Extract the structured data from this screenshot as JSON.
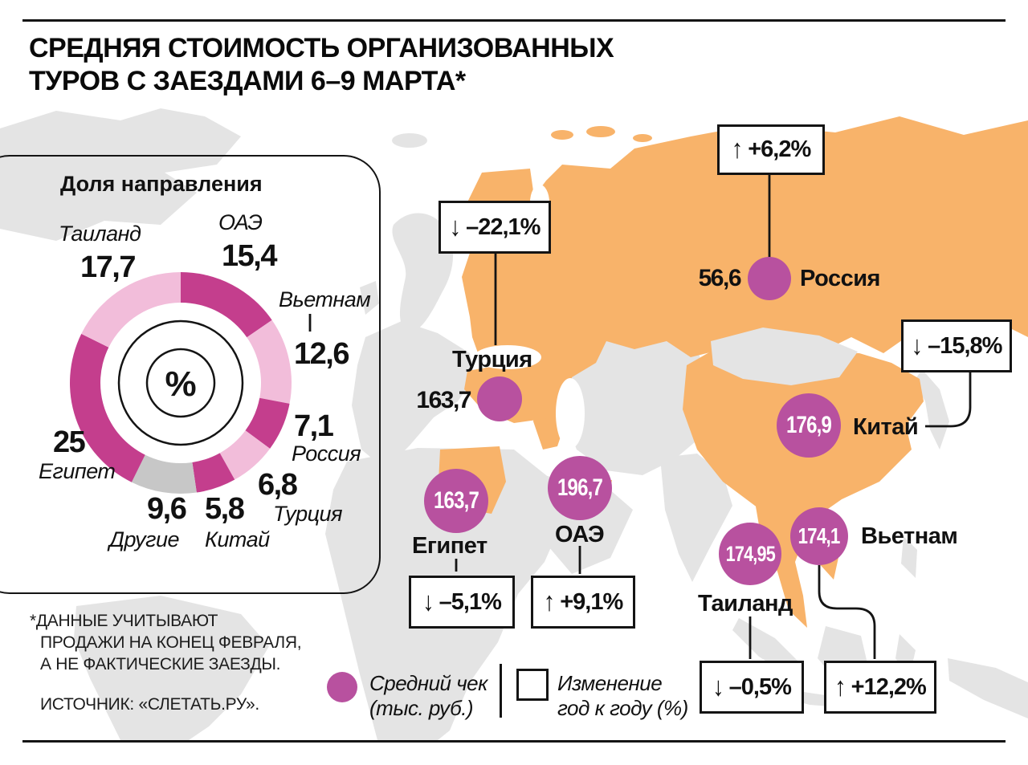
{
  "title": {
    "line1": "СРЕДНЯЯ СТОИМОСТЬ ОРГАНИЗОВАННЫХ",
    "line2": "ТУРОВ С ЗАЕЗДАМИ 6–9 МАРТА*"
  },
  "share_panel": {
    "title": "Доля направления"
  },
  "chart_data": [
    {
      "type": "donut",
      "title": "Доля направления",
      "unit": "%",
      "segments": [
        {
          "label": "ОАЭ",
          "value": "15,4",
          "num": 15.4,
          "color": "#c43e8d"
        },
        {
          "label": "Вьетнам",
          "value": "12,6",
          "num": 12.6,
          "color": "#f2bdda"
        },
        {
          "label": "Россия",
          "value": "7,1",
          "num": 7.1,
          "color": "#c43e8d"
        },
        {
          "label": "Турция",
          "value": "6,8",
          "num": 6.8,
          "color": "#f2bdda"
        },
        {
          "label": "Китай",
          "value": "5,8",
          "num": 5.8,
          "color": "#c43e8d"
        },
        {
          "label": "Другие",
          "value": "9,6",
          "num": 9.6,
          "color": "#c7c7c7"
        },
        {
          "label": "Египет",
          "value": "25",
          "num": 25,
          "color": "#c43e8d"
        },
        {
          "label": "Таиланд",
          "value": "17,7",
          "num": 17.7,
          "color": "#f2bdda"
        }
      ]
    },
    {
      "type": "map",
      "title": "Средний чек (тыс. руб.) и изменение год к году (%)",
      "countries": [
        {
          "name": "Россия",
          "avg_check": "56,6",
          "arrow": "↑",
          "yoy": "+6,2%"
        },
        {
          "name": "Турция",
          "avg_check": "163,7",
          "arrow": "↓",
          "yoy": "–22,1%"
        },
        {
          "name": "Китай",
          "avg_check": "176,9",
          "arrow": "↓",
          "yoy": "–15,8%"
        },
        {
          "name": "Египет",
          "avg_check": "163,7",
          "arrow": "↓",
          "yoy": "–5,1%"
        },
        {
          "name": "ОАЭ",
          "avg_check": "196,7",
          "arrow": "↑",
          "yoy": "+9,1%"
        },
        {
          "name": "Таиланд",
          "avg_check": "174,95",
          "arrow": "↓",
          "yoy": "–0,5%"
        },
        {
          "name": "Вьетнам",
          "avg_check": "174,1",
          "arrow": "↑",
          "yoy": "+12,2%"
        }
      ]
    }
  ],
  "legend": {
    "check_line1": "Средний чек",
    "check_line2": "(тыс. руб.)",
    "yoy_line1": "Изменение",
    "yoy_line2": "год к году (%)"
  },
  "footnote": {
    "line1": "*ДАННЫЕ УЧИТЫВАЮТ",
    "line2": "ПРОДАЖИ НА КОНЕЦ ФЕВРАЛЯ,",
    "line3": "А НЕ ФАКТИЧЕСКИЕ ЗАЕЗДЫ.",
    "source": "ИСТОЧНИК: «СЛЕТАТЬ.РУ»."
  },
  "colors": {
    "highlight_country": "#f8b36a",
    "land": "#e4e4e4",
    "map_circle": "#b8519f",
    "donut_dark": "#c43e8d",
    "donut_light": "#f2bdda",
    "donut_other": "#c7c7c7"
  }
}
